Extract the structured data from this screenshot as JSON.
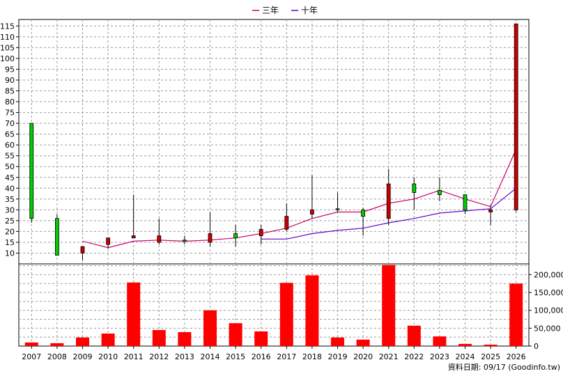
{
  "chart_data": [
    {
      "type": "candlestick",
      "legend": [
        {
          "name": "三年",
          "color": "#cc0066"
        },
        {
          "name": "十年",
          "color": "#6600cc"
        }
      ],
      "legend_placement": "top-center",
      "x": [
        "2007",
        "2008",
        "2009",
        "2010",
        "2011",
        "2012",
        "2013",
        "2014",
        "2015",
        "2016",
        "2017",
        "2018",
        "2019",
        "2020",
        "2021",
        "2022",
        "2023",
        "2024",
        "2025",
        "2026"
      ],
      "ohlc": [
        {
          "open": 26,
          "high": 70,
          "low": 24,
          "close": 70
        },
        {
          "open": 9,
          "high": 28,
          "low": 9,
          "close": 26
        },
        {
          "open": 13,
          "high": 13,
          "low": 6.5,
          "close": 10
        },
        {
          "open": 17,
          "high": 17,
          "low": 12,
          "close": 14
        },
        {
          "open": 18,
          "high": 37,
          "low": 17,
          "close": 17
        },
        {
          "open": 18,
          "high": 26,
          "low": 14,
          "close": 15
        },
        {
          "open": 16,
          "high": 18,
          "low": 14,
          "close": 16
        },
        {
          "open": 19,
          "high": 29,
          "low": 13,
          "close": 15
        },
        {
          "open": 17,
          "high": 23,
          "low": 13,
          "close": 19
        },
        {
          "open": 21,
          "high": 23,
          "low": 14,
          "close": 18
        },
        {
          "open": 27,
          "high": 33,
          "low": 20,
          "close": 21
        },
        {
          "open": 30,
          "high": 46,
          "low": 26,
          "close": 28
        },
        {
          "open": 30,
          "high": 38,
          "low": 29,
          "close": 30.5
        },
        {
          "open": 27,
          "high": 31,
          "low": 18,
          "close": 30
        },
        {
          "open": 42,
          "high": 49,
          "low": 23,
          "close": 26
        },
        {
          "open": 38,
          "high": 45,
          "low": 30,
          "close": 42
        },
        {
          "open": 37,
          "high": 45,
          "low": 34,
          "close": 39
        },
        {
          "open": 30,
          "high": 37,
          "low": 28,
          "close": 37
        },
        {
          "open": 30,
          "high": 32,
          "low": 23,
          "close": 29
        },
        {
          "open": 116,
          "high": 116,
          "low": 29,
          "close": 30
        }
      ],
      "up_color": "#00cc00",
      "down_color": "#cc0000",
      "series": [
        {
          "name": "三年",
          "color": "#cc0066",
          "values": [
            null,
            null,
            15.5,
            12.5,
            15.5,
            16,
            15.5,
            16,
            17,
            19,
            21.5,
            26,
            29,
            29,
            33,
            35,
            39,
            35,
            31.5,
            58
          ]
        },
        {
          "name": "十年",
          "color": "#6600cc",
          "values": [
            null,
            null,
            null,
            null,
            null,
            null,
            null,
            null,
            null,
            16.5,
            16.5,
            19,
            20.5,
            21.5,
            24,
            26,
            28.5,
            29.5,
            30.5,
            40
          ]
        }
      ],
      "ylim": [
        5,
        118
      ],
      "yticks": [
        10,
        15,
        20,
        25,
        30,
        35,
        40,
        45,
        50,
        55,
        60,
        65,
        70,
        75,
        80,
        85,
        90,
        95,
        100,
        105,
        110,
        115
      ],
      "grid": true
    },
    {
      "type": "bar",
      "categories": [
        "2007",
        "2008",
        "2009",
        "2010",
        "2011",
        "2012",
        "2013",
        "2014",
        "2015",
        "2016",
        "2017",
        "2018",
        "2019",
        "2020",
        "2021",
        "2022",
        "2023",
        "2024",
        "2025",
        "2026"
      ],
      "values": [
        10000,
        8000,
        24000,
        35000,
        178000,
        45000,
        39000,
        100000,
        64000,
        41000,
        177000,
        198000,
        24000,
        18000,
        227000,
        57000,
        27000,
        6000,
        4000,
        175000
      ],
      "color": "#ff0000",
      "ylim": [
        0,
        230000
      ],
      "yticks": [
        "0",
        "50,000",
        "100,000",
        "150,000",
        "200,000"
      ],
      "ytick_values": [
        0,
        50000,
        100000,
        150000,
        200000
      ],
      "grid": true
    }
  ],
  "footer": "資料日期: 09/17  (Goodinfo.tw)"
}
